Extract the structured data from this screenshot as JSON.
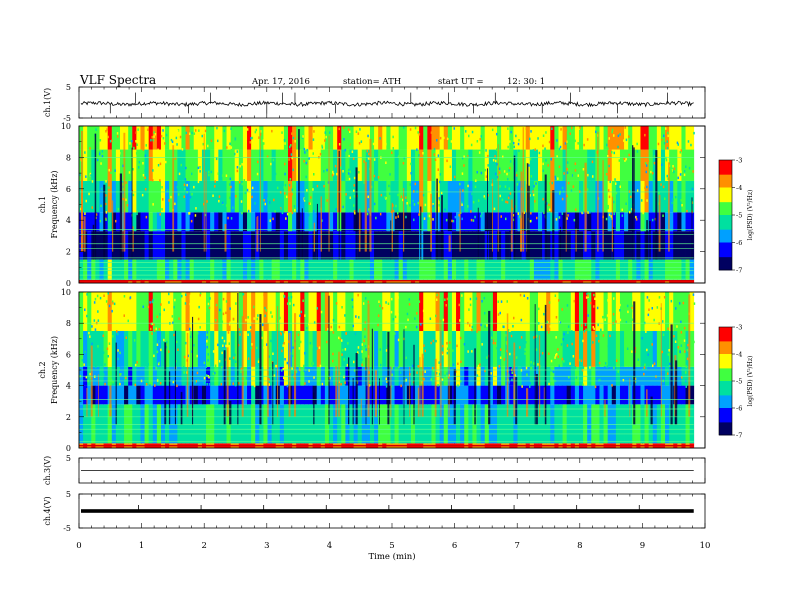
{
  "header": {
    "title": "VLF  Spectra",
    "date": "Apr. 17, 2016",
    "station": "station= ATH",
    "start_label": "start  UT  =",
    "start_time": "12: 30: 1"
  },
  "chart_data": [
    {
      "type": "line",
      "panel": "ch1-waveform",
      "ylabel": "ch.1(V)",
      "ylim": [
        -5,
        5
      ],
      "yticks": [
        "5",
        "-5"
      ],
      "description_level": -0.4,
      "spikes_up": [
        0.9,
        2.1,
        3.25,
        3.45,
        5.3,
        5.9,
        6.65,
        7.85,
        9.4
      ],
      "spikes_down": [
        0.5,
        1.75,
        3.0,
        4.1,
        6.3,
        7.4,
        8.6
      ]
    },
    {
      "type": "heatmap",
      "panel": "ch1-spectrogram",
      "ylabel_top": "ch.1",
      "ylabel": "Frequency  (kHz)",
      "ylim": [
        0,
        10
      ],
      "yticks": [
        "0",
        "2",
        "4",
        "6",
        "8",
        "10"
      ],
      "colorbar": {
        "label": "log(PSD) (V²/Hz)",
        "range": [
          -7,
          -3
        ],
        "ticks": [
          "-3",
          "-4",
          "-5",
          "-6",
          "-7"
        ],
        "colors": [
          "#000060",
          "#0000ff",
          "#00a0ff",
          "#00e0a0",
          "#40ff40",
          "#ffff00",
          "#ff9000",
          "#ff0000",
          "#ffffff"
        ]
      },
      "bands_khz": [
        {
          "from": 0,
          "to": 0.2,
          "level": -3.3
        },
        {
          "from": 0.2,
          "to": 1.5,
          "level": -5.2
        },
        {
          "from": 1.5,
          "to": 3.3,
          "level": -6.7
        },
        {
          "from": 3.3,
          "to": 4.5,
          "level": -6.3
        },
        {
          "from": 4.5,
          "to": 6.5,
          "level": -5.3
        },
        {
          "from": 6.5,
          "to": 8.5,
          "level": -4.8
        },
        {
          "from": 8.5,
          "to": 10,
          "level": -4.4
        }
      ],
      "lines_khz": [
        0.25,
        0.5,
        0.8,
        1.0,
        1.3,
        1.6,
        2.2,
        2.5,
        3.1,
        3.4,
        5.8,
        8.0
      ]
    },
    {
      "type": "heatmap",
      "panel": "ch2-spectrogram",
      "ylabel_top": "ch.2",
      "ylabel": "Frequency  (kHz)",
      "ylim": [
        0,
        10
      ],
      "yticks": [
        "0",
        "2",
        "4",
        "6",
        "8",
        "10"
      ],
      "colorbar": {
        "label": "log(PSD) (V²/Hz)",
        "range": [
          -7,
          -3
        ],
        "ticks": [
          "-3",
          "-4",
          "-5",
          "-6",
          "-7"
        ],
        "colors": [
          "#000060",
          "#0000ff",
          "#00a0ff",
          "#00e0a0",
          "#40ff40",
          "#ffff00",
          "#ff9000",
          "#ff0000",
          "#ffffff"
        ]
      },
      "bands_khz": [
        {
          "from": 0,
          "to": 0.3,
          "level": -3.5
        },
        {
          "from": 0.3,
          "to": 2.8,
          "level": -5.3
        },
        {
          "from": 2.8,
          "to": 4.0,
          "level": -6.2
        },
        {
          "from": 4.0,
          "to": 5.2,
          "level": -5.6
        },
        {
          "from": 5.2,
          "to": 7.5,
          "level": -5.1
        },
        {
          "from": 7.5,
          "to": 10,
          "level": -4.5
        }
      ],
      "lines_khz": [
        0.4,
        0.9,
        1.2,
        1.5,
        2.0,
        2.5,
        3.1,
        4.3,
        4.6,
        5.0,
        8.0
      ]
    },
    {
      "type": "line",
      "panel": "ch3-waveform",
      "ylabel": "ch.3(V)",
      "ylim": [
        -5,
        5
      ],
      "yticks": [
        "5"
      ],
      "level": 0
    },
    {
      "type": "line",
      "panel": "ch4-waveform",
      "ylabel": "ch.4(V)",
      "ylim": [
        -5,
        5
      ],
      "yticks": [
        "5",
        "-5"
      ],
      "level": 0
    }
  ],
  "xaxis": {
    "label": "Time  (min)",
    "xlim": [
      0,
      10
    ],
    "ticks": [
      "0",
      "1",
      "2",
      "3",
      "4",
      "5",
      "6",
      "7",
      "8",
      "9",
      "10"
    ],
    "data_end": 9.82
  }
}
